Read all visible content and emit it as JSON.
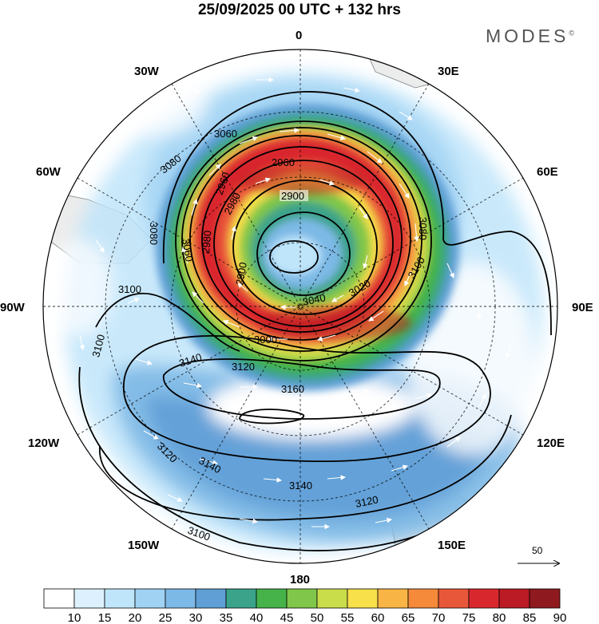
{
  "header": {
    "title": "25/09/2025  00 UTC  + 132 hrs",
    "brand": "MODES",
    "brand_mark": "©"
  },
  "map": {
    "projection": "south-polar-stereographic",
    "longitude_labels": [
      {
        "lon": 0,
        "text": "0"
      },
      {
        "lon": 30,
        "text": "30E"
      },
      {
        "lon": 60,
        "text": "60E"
      },
      {
        "lon": 90,
        "text": "90E"
      },
      {
        "lon": 120,
        "text": "120E"
      },
      {
        "lon": 150,
        "text": "150E"
      },
      {
        "lon": 180,
        "text": "180"
      },
      {
        "lon": -150,
        "text": "150W"
      },
      {
        "lon": -120,
        "text": "120W"
      },
      {
        "lon": -90,
        "text": "90W"
      },
      {
        "lon": -60,
        "text": "60W"
      },
      {
        "lon": -30,
        "text": "30W"
      }
    ],
    "contour_labels": [
      "2900",
      "2960",
      "2960",
      "2980",
      "2900",
      "3060",
      "3080",
      "3080",
      "3060",
      "3100",
      "3080",
      "3100",
      "3100",
      "3000",
      "3040",
      "3020",
      "3120",
      "3140",
      "3160",
      "3140",
      "3120",
      "3140",
      "3120",
      "3100",
      "2980",
      "3020"
    ],
    "wind_reference": {
      "value": "50"
    }
  },
  "colorbar": {
    "levels": [
      "10",
      "15",
      "20",
      "25",
      "30",
      "35",
      "40",
      "45",
      "50",
      "55",
      "60",
      "65",
      "70",
      "75",
      "80",
      "85",
      "90"
    ],
    "colors": [
      "#ffffff",
      "#dcf1fd",
      "#bfe5fa",
      "#9fd2f3",
      "#7db9e6",
      "#5f9fd6",
      "#3aa38a",
      "#45b34a",
      "#7fc64a",
      "#c9dd4a",
      "#f7e04a",
      "#f8b444",
      "#f48a3a",
      "#e9573a",
      "#d9282d",
      "#bb1b24",
      "#8e1a1f"
    ]
  }
}
